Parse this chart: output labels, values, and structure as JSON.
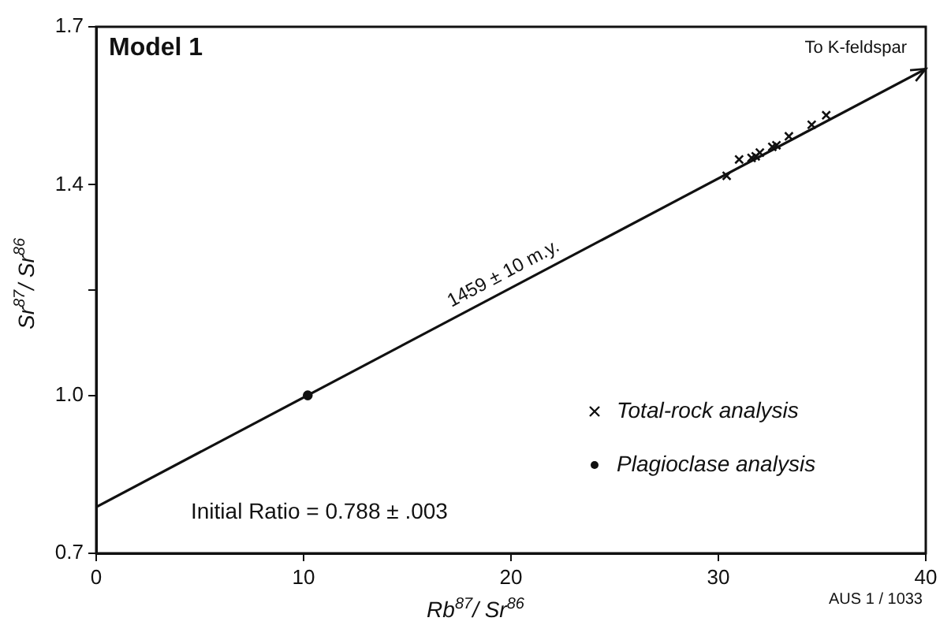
{
  "chart_data": {
    "type": "scatter",
    "xlabel": "Rb$^{87}$/ Sr$^{86}$",
    "ylabel": "Sr$^{87}$/ Sr$^{86}$",
    "xlim": [
      0,
      40
    ],
    "xticks": [
      0,
      10,
      20,
      30,
      40
    ],
    "ylim": [
      0.7,
      1.7
    ],
    "yticks": [
      0.7,
      {
        "value": 1,
        "label": "1.0"
      },
      {
        "value": 1.2,
        "label": null
      },
      1.4,
      1.7
    ],
    "grid": false,
    "legend": "bottom right",
    "series": [
      {
        "name": "Total-rock analysis",
        "marker": "cross",
        "color": "#111111",
        "x": [
          30.4,
          31.0,
          31.6,
          31.8,
          32.0,
          32.6,
          32.8,
          33.4,
          34.5,
          35.2
        ],
        "values": [
          1.417,
          1.448,
          1.451,
          1.454,
          1.461,
          1.472,
          1.475,
          1.492,
          1.514,
          1.532
        ]
      },
      {
        "name": "Plagioclase analysis",
        "marker": "circle",
        "color": "#111111",
        "x": [
          10.2
        ],
        "values": [
          1.0
        ]
      },
      {
        "type": "line",
        "marker": "none",
        "line_style": "solid",
        "color": "#111111",
        "x": [
          0,
          40
        ],
        "values": [
          0.788,
          1.62
        ]
      }
    ],
    "annotations": [
      "Model 1",
      "Initial Ratio = 0.788 ± .003",
      "AUS 1 / 1033",
      {
        "text": "To K-feldspar",
        "x": 40,
        "y": 1.62
      },
      {
        "text": "1459 ± 10 m.y.",
        "x": 20,
        "y": 1.204
      }
    ]
  }
}
